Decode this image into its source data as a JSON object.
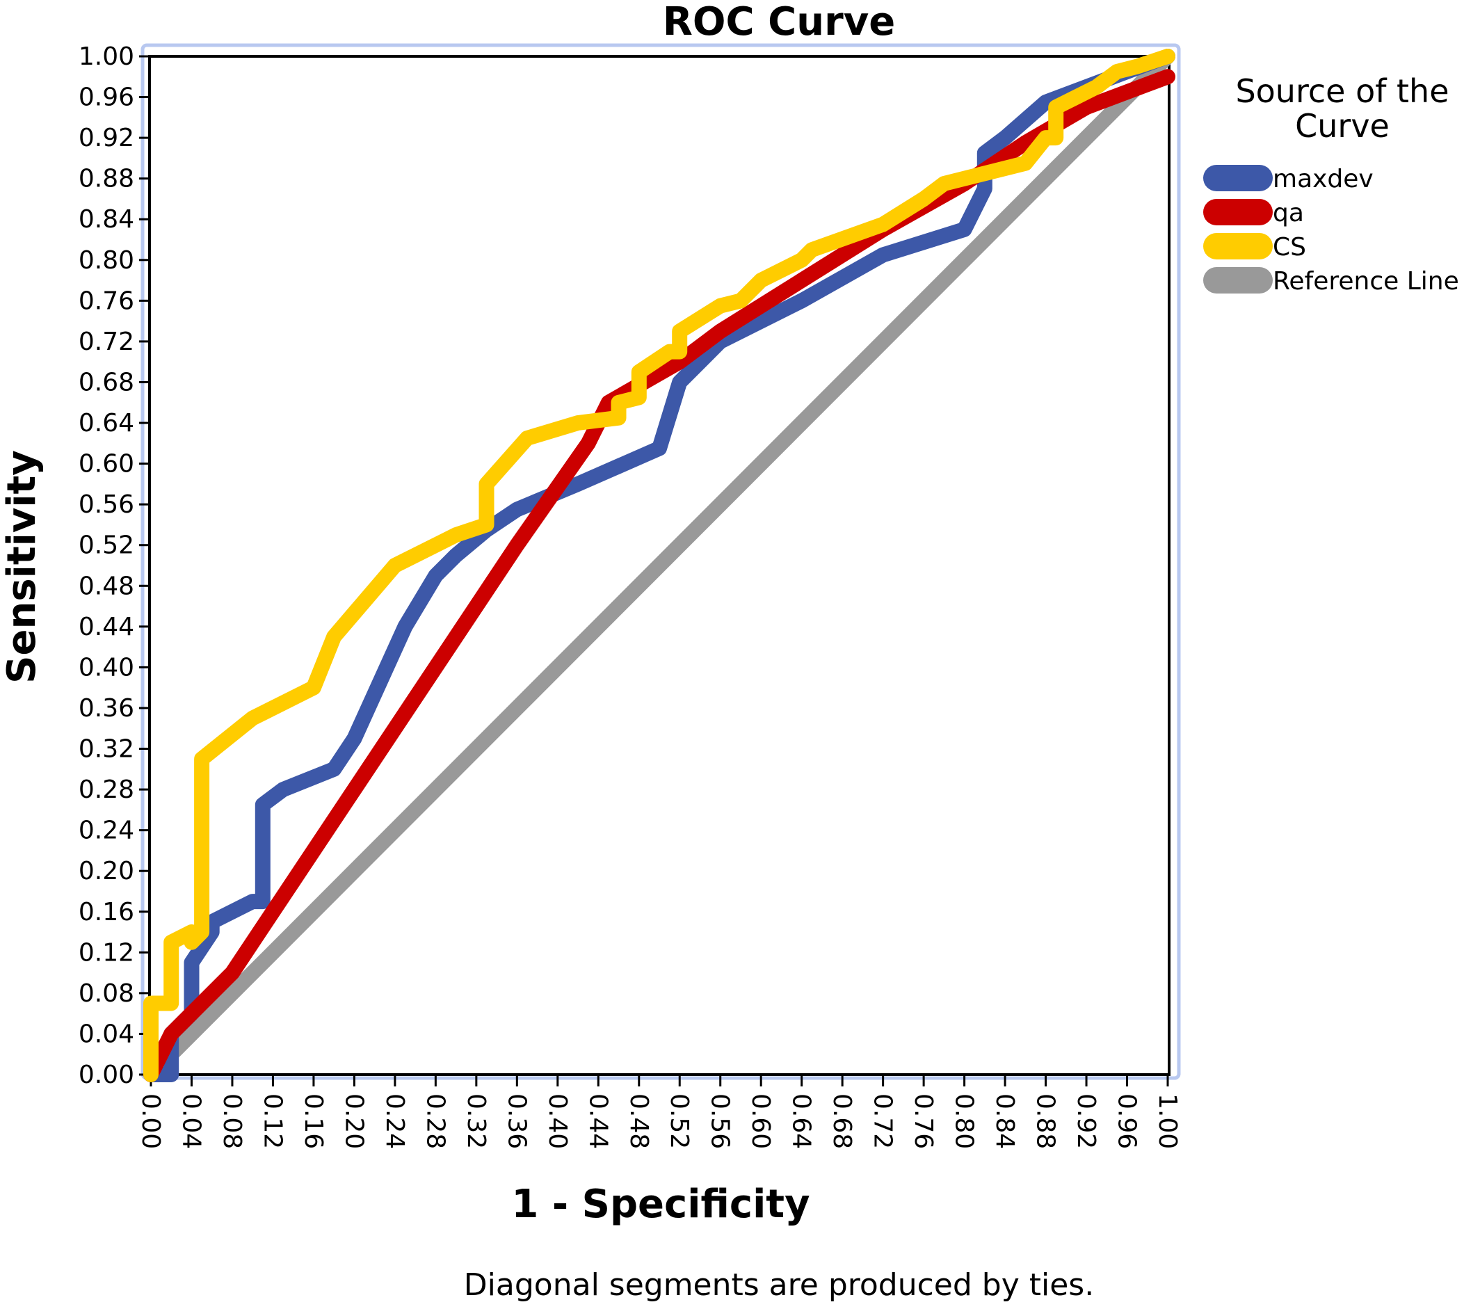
{
  "chart_data": {
    "type": "line",
    "title": "ROC Curve",
    "xlabel": "1 - Specificity",
    "ylabel": "Sensitivity",
    "xlim": [
      0,
      1
    ],
    "ylim": [
      0,
      1
    ],
    "grid": false,
    "x_ticks": [
      "0.00",
      "0.04",
      "0.08",
      "0.12",
      "0.16",
      "0.20",
      "0.24",
      "0.28",
      "0.32",
      "0.36",
      "0.40",
      "0.44",
      "0.48",
      "0.52",
      "0.56",
      "0.60",
      "0.64",
      "0.68",
      "0.72",
      "0.76",
      "0.80",
      "0.84",
      "0.88",
      "0.92",
      "0.96",
      "1.00"
    ],
    "y_ticks": [
      "0.00",
      "0.04",
      "0.08",
      "0.12",
      "0.16",
      "0.20",
      "0.24",
      "0.28",
      "0.32",
      "0.36",
      "0.40",
      "0.44",
      "0.48",
      "0.52",
      "0.56",
      "0.60",
      "0.64",
      "0.68",
      "0.72",
      "0.76",
      "0.80",
      "0.84",
      "0.88",
      "0.92",
      "0.96",
      "1.00"
    ],
    "legend": {
      "title": "Source of the Curve",
      "placement": "right"
    },
    "series": [
      {
        "name": "maxdev",
        "color": "#3d58a8",
        "points": [
          [
            0.0,
            0.0
          ],
          [
            0.02,
            0.0
          ],
          [
            0.02,
            0.04
          ],
          [
            0.04,
            0.06
          ],
          [
            0.04,
            0.11
          ],
          [
            0.06,
            0.14
          ],
          [
            0.06,
            0.15
          ],
          [
            0.1,
            0.17
          ],
          [
            0.11,
            0.17
          ],
          [
            0.11,
            0.265
          ],
          [
            0.13,
            0.28
          ],
          [
            0.18,
            0.3
          ],
          [
            0.2,
            0.33
          ],
          [
            0.25,
            0.44
          ],
          [
            0.28,
            0.49
          ],
          [
            0.3,
            0.51
          ],
          [
            0.33,
            0.535
          ],
          [
            0.36,
            0.555
          ],
          [
            0.42,
            0.58
          ],
          [
            0.5,
            0.615
          ],
          [
            0.52,
            0.68
          ],
          [
            0.56,
            0.72
          ],
          [
            0.64,
            0.76
          ],
          [
            0.72,
            0.805
          ],
          [
            0.8,
            0.83
          ],
          [
            0.82,
            0.87
          ],
          [
            0.82,
            0.905
          ],
          [
            0.84,
            0.92
          ],
          [
            0.88,
            0.955
          ],
          [
            1.0,
            1.0
          ]
        ]
      },
      {
        "name": "qa",
        "color": "#cc0000",
        "points": [
          [
            0.0,
            0.0
          ],
          [
            0.02,
            0.04
          ],
          [
            0.08,
            0.1
          ],
          [
            0.12,
            0.16
          ],
          [
            0.2,
            0.28
          ],
          [
            0.28,
            0.4
          ],
          [
            0.36,
            0.52
          ],
          [
            0.43,
            0.62
          ],
          [
            0.45,
            0.66
          ],
          [
            0.52,
            0.7
          ],
          [
            0.56,
            0.73
          ],
          [
            0.64,
            0.78
          ],
          [
            0.72,
            0.83
          ],
          [
            0.8,
            0.875
          ],
          [
            0.86,
            0.915
          ],
          [
            0.92,
            0.95
          ],
          [
            1.0,
            0.98
          ]
        ]
      },
      {
        "name": "CS",
        "color": "#ffcc00",
        "points": [
          [
            0.0,
            0.0
          ],
          [
            0.0,
            0.07
          ],
          [
            0.02,
            0.07
          ],
          [
            0.02,
            0.13
          ],
          [
            0.04,
            0.14
          ],
          [
            0.04,
            0.13
          ],
          [
            0.05,
            0.14
          ],
          [
            0.05,
            0.31
          ],
          [
            0.1,
            0.35
          ],
          [
            0.16,
            0.38
          ],
          [
            0.18,
            0.43
          ],
          [
            0.24,
            0.5
          ],
          [
            0.3,
            0.53
          ],
          [
            0.33,
            0.54
          ],
          [
            0.33,
            0.58
          ],
          [
            0.37,
            0.625
          ],
          [
            0.42,
            0.64
          ],
          [
            0.46,
            0.645
          ],
          [
            0.46,
            0.66
          ],
          [
            0.48,
            0.665
          ],
          [
            0.48,
            0.69
          ],
          [
            0.51,
            0.71
          ],
          [
            0.52,
            0.71
          ],
          [
            0.52,
            0.73
          ],
          [
            0.56,
            0.755
          ],
          [
            0.58,
            0.76
          ],
          [
            0.6,
            0.78
          ],
          [
            0.64,
            0.8
          ],
          [
            0.65,
            0.81
          ],
          [
            0.72,
            0.835
          ],
          [
            0.76,
            0.86
          ],
          [
            0.78,
            0.875
          ],
          [
            0.86,
            0.895
          ],
          [
            0.88,
            0.92
          ],
          [
            0.89,
            0.92
          ],
          [
            0.89,
            0.95
          ],
          [
            0.91,
            0.96
          ],
          [
            0.93,
            0.97
          ],
          [
            0.95,
            0.985
          ],
          [
            0.97,
            0.99
          ],
          [
            1.0,
            1.0
          ]
        ]
      },
      {
        "name": "Reference Line",
        "color": "#999999",
        "points": [
          [
            0.0,
            0.0
          ],
          [
            1.0,
            1.0
          ]
        ]
      }
    ],
    "footnote": "Diagonal segments are produced by ties."
  }
}
